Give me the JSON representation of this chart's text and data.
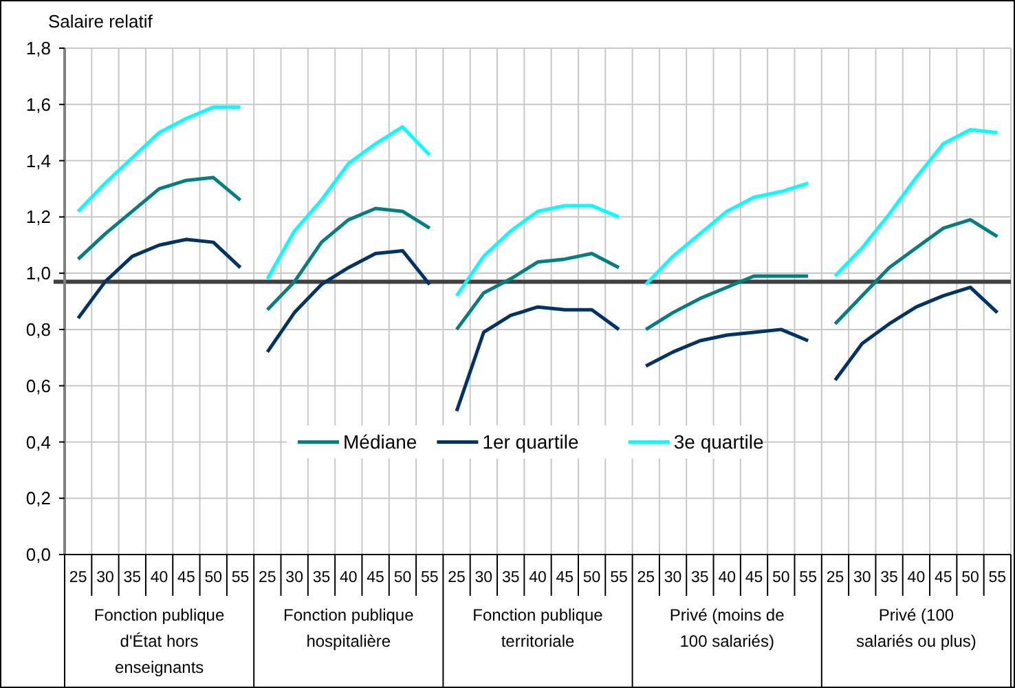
{
  "chart_data": {
    "type": "line",
    "ylabel": "Salaire relatif",
    "categories": [
      "25",
      "30",
      "35",
      "40",
      "45",
      "50",
      "55",
      "25",
      "30",
      "35",
      "40",
      "45",
      "50",
      "55",
      "25",
      "30",
      "35",
      "40",
      "45",
      "50",
      "55",
      "25",
      "30",
      "35",
      "40",
      "45",
      "50",
      "55",
      "25",
      "30",
      "35",
      "40",
      "45",
      "50",
      "55"
    ],
    "annotations": [
      "Fonction publique d'État hors enseignants",
      "Fonction publique hospitalière",
      "Fonction publique territoriale",
      "Privé (moins de 100 salariés)",
      "Privé (100 salariés ou plus)"
    ],
    "ylim": [
      0,
      1.8
    ],
    "yticks": [
      {
        "value": 0,
        "label": "0,0"
      },
      {
        "value": 0.2,
        "label": "0,2"
      },
      {
        "value": 0.4,
        "label": "0,4"
      },
      {
        "value": 0.6,
        "label": "0,6"
      },
      {
        "value": 0.8,
        "label": "0,8"
      },
      {
        "value": 1,
        "label": "1,0"
      },
      {
        "value": 1.2,
        "label": "1,2"
      },
      {
        "value": 1.4,
        "label": "1,4"
      },
      {
        "value": 1.6,
        "label": "1,6"
      },
      {
        "value": 1.8,
        "label": "1,8"
      }
    ],
    "grid": true,
    "legend": "center",
    "marker": "none",
    "line_style": "solid",
    "ref_lines": [
      {
        "axis": "y",
        "value": 0.97,
        "label": null,
        "color": "#404040"
      }
    ],
    "series": [
      {
        "name": "Médiane",
        "color": "#008080",
        "values": [
          1.05,
          1.14,
          1.22,
          1.3,
          1.33,
          1.34,
          1.26,
          null,
          null,
          null,
          null,
          null,
          null,
          null,
          null,
          null,
          null,
          null,
          null,
          null,
          null,
          null,
          null,
          null,
          null,
          null,
          null,
          null,
          null,
          null,
          null,
          null,
          null,
          null,
          null
        ]
      },
      {
        "name": "1er quartile",
        "color": "#003366",
        "values": [
          0.84,
          0.97,
          1.06,
          1.1,
          1.12,
          1.11,
          1.02,
          null,
          null,
          null,
          null,
          null,
          null,
          null,
          null,
          null,
          null,
          null,
          null,
          null,
          null,
          null,
          null,
          null,
          null,
          null,
          null,
          null,
          null,
          null,
          null,
          null,
          null,
          null,
          null
        ]
      },
      {
        "name": "3e quartile",
        "color": "#00ffff",
        "values": [
          1.22,
          1.32,
          1.41,
          1.5,
          1.55,
          1.59,
          1.59,
          null,
          null,
          null,
          null,
          null,
          null,
          null,
          null,
          null,
          null,
          null,
          null,
          null,
          null,
          null,
          null,
          null,
          null,
          null,
          null,
          null,
          null,
          null,
          null,
          null,
          null,
          null,
          null
        ]
      },
      {
        "color": "#008080",
        "values": [
          null,
          null,
          null,
          null,
          null,
          null,
          null,
          0.87,
          0.97,
          1.11,
          1.19,
          1.23,
          1.22,
          1.16,
          null,
          null,
          null,
          null,
          null,
          null,
          null,
          null,
          null,
          null,
          null,
          null,
          null,
          null,
          null,
          null,
          null,
          null,
          null,
          null,
          null
        ]
      },
      {
        "color": "#003366",
        "values": [
          null,
          null,
          null,
          null,
          null,
          null,
          null,
          0.72,
          0.86,
          0.96,
          1.02,
          1.07,
          1.08,
          0.96,
          null,
          null,
          null,
          null,
          null,
          null,
          null,
          null,
          null,
          null,
          null,
          null,
          null,
          null,
          null,
          null,
          null,
          null,
          null,
          null,
          null
        ]
      },
      {
        "color": "#00ffff",
        "values": [
          null,
          null,
          null,
          null,
          null,
          null,
          null,
          0.98,
          1.15,
          1.26,
          1.39,
          1.46,
          1.52,
          1.42,
          null,
          null,
          null,
          null,
          null,
          null,
          null,
          null,
          null,
          null,
          null,
          null,
          null,
          null,
          null,
          null,
          null,
          null,
          null,
          null,
          null
        ]
      },
      {
        "color": "#008080",
        "values": [
          null,
          null,
          null,
          null,
          null,
          null,
          null,
          null,
          null,
          null,
          null,
          null,
          null,
          null,
          0.8,
          0.93,
          0.98,
          1.04,
          1.05,
          1.07,
          1.02,
          null,
          null,
          null,
          null,
          null,
          null,
          null,
          null,
          null,
          null,
          null,
          null,
          null,
          null
        ]
      },
      {
        "color": "#003366",
        "values": [
          null,
          null,
          null,
          null,
          null,
          null,
          null,
          null,
          null,
          null,
          null,
          null,
          null,
          null,
          0.51,
          0.79,
          0.85,
          0.88,
          0.87,
          0.87,
          0.8,
          null,
          null,
          null,
          null,
          null,
          null,
          null,
          null,
          null,
          null,
          null,
          null,
          null,
          null
        ]
      },
      {
        "color": "#00ffff",
        "values": [
          null,
          null,
          null,
          null,
          null,
          null,
          null,
          null,
          null,
          null,
          null,
          null,
          null,
          null,
          0.92,
          1.06,
          1.15,
          1.22,
          1.24,
          1.24,
          1.2,
          null,
          null,
          null,
          null,
          null,
          null,
          null,
          null,
          null,
          null,
          null,
          null,
          null,
          null
        ]
      },
      {
        "color": "#008080",
        "values": [
          null,
          null,
          null,
          null,
          null,
          null,
          null,
          null,
          null,
          null,
          null,
          null,
          null,
          null,
          null,
          null,
          null,
          null,
          null,
          null,
          null,
          0.8,
          0.86,
          0.91,
          0.95,
          0.99,
          0.99,
          0.99,
          null,
          null,
          null,
          null,
          null,
          null,
          null
        ]
      },
      {
        "color": "#003366",
        "values": [
          null,
          null,
          null,
          null,
          null,
          null,
          null,
          null,
          null,
          null,
          null,
          null,
          null,
          null,
          null,
          null,
          null,
          null,
          null,
          null,
          null,
          0.67,
          0.72,
          0.76,
          0.78,
          0.79,
          0.8,
          0.76,
          null,
          null,
          null,
          null,
          null,
          null,
          null
        ]
      },
      {
        "color": "#00ffff",
        "values": [
          null,
          null,
          null,
          null,
          null,
          null,
          null,
          null,
          null,
          null,
          null,
          null,
          null,
          null,
          null,
          null,
          null,
          null,
          null,
          null,
          null,
          0.96,
          1.06,
          1.14,
          1.22,
          1.27,
          1.29,
          1.32,
          null,
          null,
          null,
          null,
          null,
          null,
          null
        ]
      },
      {
        "color": "#008080",
        "values": [
          null,
          null,
          null,
          null,
          null,
          null,
          null,
          null,
          null,
          null,
          null,
          null,
          null,
          null,
          null,
          null,
          null,
          null,
          null,
          null,
          null,
          null,
          null,
          null,
          null,
          null,
          null,
          null,
          0.82,
          0.92,
          1.02,
          1.09,
          1.16,
          1.19,
          1.13
        ]
      },
      {
        "color": "#003366",
        "values": [
          null,
          null,
          null,
          null,
          null,
          null,
          null,
          null,
          null,
          null,
          null,
          null,
          null,
          null,
          null,
          null,
          null,
          null,
          null,
          null,
          null,
          null,
          null,
          null,
          null,
          null,
          null,
          null,
          0.62,
          0.75,
          0.82,
          0.88,
          0.92,
          0.95,
          0.86
        ]
      },
      {
        "color": "#00ffff",
        "values": [
          null,
          null,
          null,
          null,
          null,
          null,
          null,
          null,
          null,
          null,
          null,
          null,
          null,
          null,
          null,
          null,
          null,
          null,
          null,
          null,
          null,
          null,
          null,
          null,
          null,
          null,
          null,
          null,
          0.99,
          1.09,
          1.21,
          1.34,
          1.46,
          1.51,
          1.5
        ]
      }
    ]
  }
}
